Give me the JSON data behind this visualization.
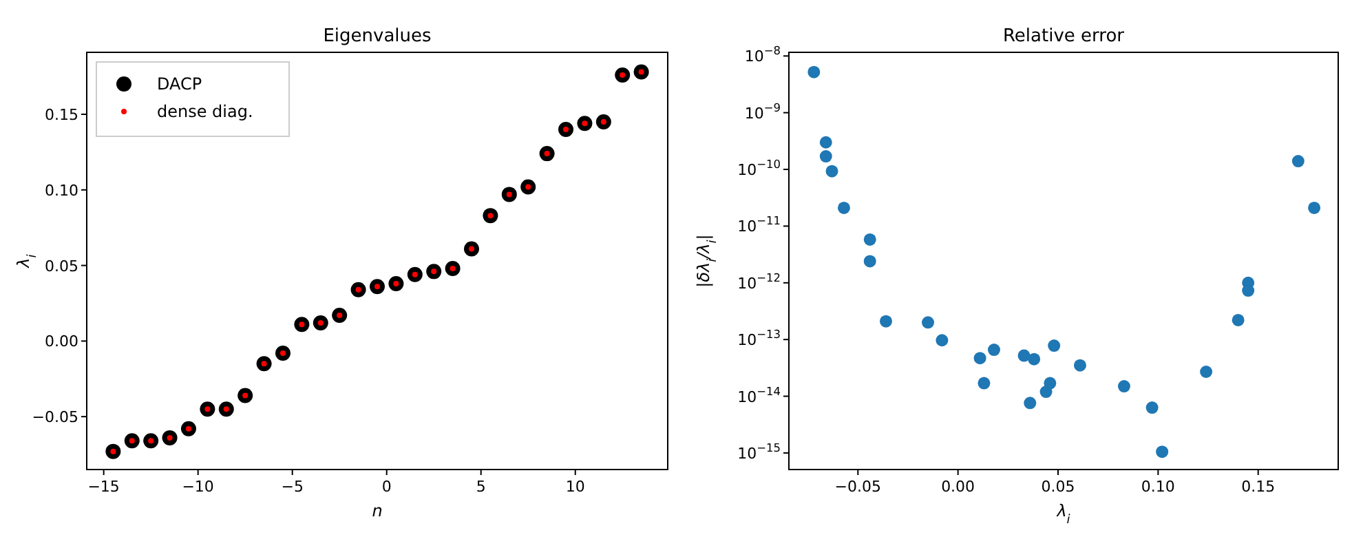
{
  "chart_data": [
    {
      "type": "scatter",
      "title": "Eigenvalues",
      "xlabel": "n",
      "ylabel": "λ$_{i}$",
      "legend": "top left",
      "marker": "circle",
      "x": [
        -14.5,
        -13.5,
        -12.5,
        -11.5,
        -10.5,
        -9.5,
        -8.5,
        -7.5,
        -6.5,
        -5.5,
        -4.5,
        -3.5,
        -2.5,
        -1.5,
        -0.5,
        0.5,
        1.5,
        2.5,
        3.5,
        4.5,
        5.5,
        6.5,
        7.5,
        8.5,
        9.5,
        10.5,
        11.5,
        12.5,
        13.5
      ],
      "series": [
        {
          "name": "DACP",
          "color": "#000000",
          "values": [
            -0.073,
            -0.066,
            -0.066,
            -0.064,
            -0.058,
            -0.045,
            -0.045,
            -0.036,
            -0.015,
            -0.008,
            0.011,
            0.012,
            0.017,
            0.034,
            0.036,
            0.038,
            0.044,
            0.046,
            0.048,
            0.061,
            0.083,
            0.097,
            0.102,
            0.124,
            0.14,
            0.144,
            0.145,
            0.176,
            0.178
          ]
        },
        {
          "name": "dense diag.",
          "color": "#ff0000",
          "values": [
            -0.073,
            -0.066,
            -0.066,
            -0.064,
            -0.058,
            -0.045,
            -0.045,
            -0.036,
            -0.015,
            -0.008,
            0.011,
            0.012,
            0.017,
            0.034,
            0.036,
            0.038,
            0.044,
            0.046,
            0.048,
            0.061,
            0.083,
            0.097,
            0.102,
            0.124,
            0.14,
            0.144,
            0.145,
            0.176,
            0.178
          ]
        }
      ],
      "xlim": [
        -15.9,
        14.9
      ],
      "xticks": [
        {
          "value": -15,
          "label": "−15"
        },
        {
          "value": -10,
          "label": "−10"
        },
        {
          "value": -5,
          "label": "−5"
        },
        0,
        5,
        10
      ],
      "ylim": [
        -0.085,
        0.191
      ],
      "yticks": [
        {
          "value": -0.05,
          "label": "−0.05"
        },
        {
          "value": 0,
          "label": "0.00"
        },
        0.05,
        {
          "value": 0.1,
          "label": "0.10"
        },
        0.15
      ]
    },
    {
      "type": "scatter",
      "title": "Relative error",
      "xlabel": "λ$_{i}$",
      "ylabel": "|δλ$_{i}$/λ$_{i}$|",
      "log": "y",
      "marker": "circle",
      "x": [
        -0.072,
        -0.066,
        -0.066,
        -0.063,
        -0.057,
        -0.044,
        -0.044,
        -0.036,
        -0.015,
        -0.008,
        0.011,
        0.013,
        0.018,
        0.033,
        0.036,
        0.038,
        0.044,
        0.046,
        0.048,
        0.061,
        0.083,
        0.097,
        0.102,
        0.124,
        0.14,
        0.145,
        0.145,
        0.17,
        0.178
      ],
      "series": [
        {
          "color": "#1f77b4",
          "values": [
            5.2e-09,
            3e-10,
            1.7e-10,
            9.3e-11,
            2.1e-11,
            5.8e-12,
            2.4e-12,
            2.1e-13,
            2e-13,
            9.7e-14,
            4.7e-14,
            1.7e-14,
            6.6e-14,
            5.2e-14,
            7.6e-15,
            4.5e-14,
            1.2e-14,
            1.7e-14,
            7.8e-14,
            3.5e-14,
            1.5e-14,
            6.3e-15,
            1.05e-15,
            2.7e-14,
            2.2e-13,
            1e-12,
            7.3e-13,
            1.4e-10,
            2.1e-11
          ]
        }
      ],
      "xlim": [
        -0.0845,
        0.19
      ],
      "xticks": [
        {
          "value": -0.05,
          "label": "−0.05"
        },
        {
          "value": 0,
          "label": "0.00"
        },
        0.05,
        {
          "value": 0.1,
          "label": "0.10"
        },
        0.15
      ],
      "ylim": [
        5.1e-16,
        1.16e-08
      ],
      "yticks": [
        {
          "value": 1e-08,
          "label": "10$^{−8}$"
        },
        {
          "value": 1e-09,
          "label": "10$^{−9}$"
        },
        {
          "value": 1e-10,
          "label": "10$^{−10}$"
        },
        {
          "value": 1e-11,
          "label": "10$^{−11}$"
        },
        {
          "value": 1e-12,
          "label": "10$^{−12}$"
        },
        {
          "value": 1e-13,
          "label": "10$^{−13}$"
        },
        {
          "value": 1e-14,
          "label": "10$^{−14}$"
        },
        {
          "value": 1e-15,
          "label": "10$^{−15}$"
        }
      ]
    }
  ]
}
